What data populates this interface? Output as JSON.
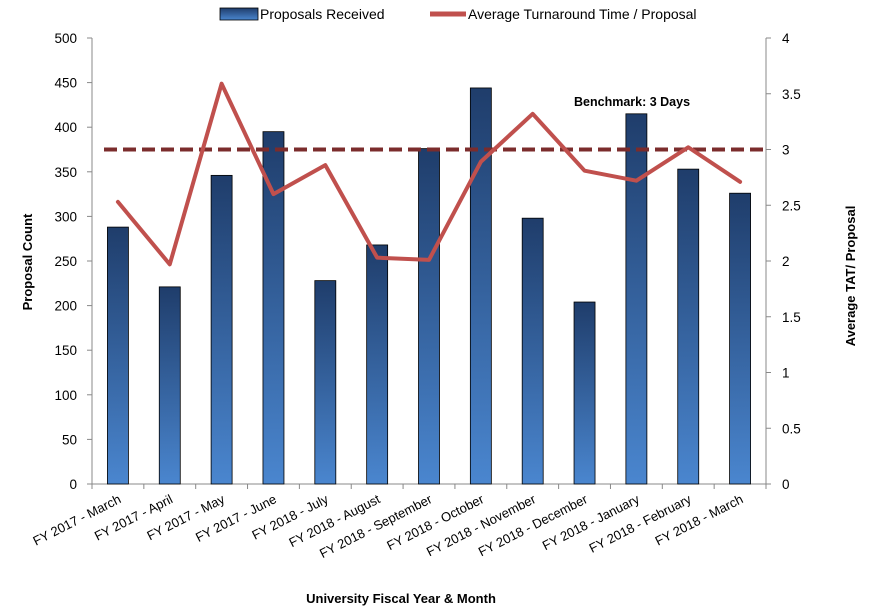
{
  "chart_data": {
    "type": "bar",
    "categories": [
      "FY 2017 - March",
      "FY 2017 - April",
      "FY 2017 - May",
      "FY 2017 - June",
      "FY 2018 - July",
      "FY 2018 - August",
      "FY 2018 - September",
      "FY 2018 - October",
      "FY 2018 - November",
      "FY 2018 - December",
      "FY 2018 - January",
      "FY 2018 - February",
      "FY 2018 - March"
    ],
    "series": [
      {
        "name": "Proposals Received",
        "type": "bar",
        "axis": "left",
        "values": [
          288,
          221,
          346,
          395,
          228,
          268,
          376,
          444,
          298,
          204,
          415,
          353,
          326
        ]
      },
      {
        "name": "Average Turnaround Time / Proposal",
        "type": "line",
        "axis": "right",
        "values": [
          2.53,
          1.97,
          3.59,
          2.6,
          2.86,
          2.03,
          2.01,
          2.89,
          3.32,
          2.81,
          2.72,
          3.02,
          2.71
        ]
      }
    ],
    "benchmark": {
      "label": "Benchmark: 3 Days",
      "value": 3
    },
    "xlabel": "University Fiscal Year & Month",
    "ylabel": "Proposal Count",
    "y2label": "Average TAT/ Proposal",
    "ylim": [
      0,
      500
    ],
    "yticks": [
      "0",
      "50",
      "100",
      "150",
      "200",
      "250",
      "300",
      "350",
      "400",
      "450",
      "500"
    ],
    "y2lim": [
      0,
      4
    ],
    "y2ticks": [
      "0",
      "0.5",
      "1",
      "1.5",
      "2",
      "2.5",
      "3",
      "3.5",
      "4"
    ],
    "legend_position": "top",
    "grid": false,
    "colors": {
      "bar_top": "#1F3D6B",
      "bar_bottom": "#4A86CF",
      "line": "#C0504D",
      "benchmark": "#7B2C2C"
    }
  }
}
